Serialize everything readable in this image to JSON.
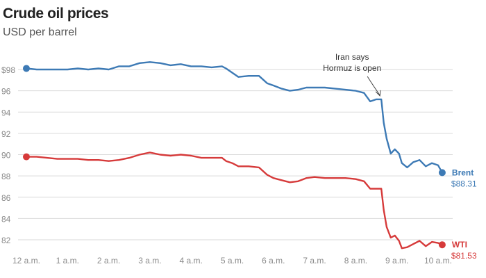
{
  "chart_data": {
    "type": "line",
    "title": "Crude oil prices",
    "subtitle": "USD per barrel",
    "ylim": [
      81,
      99
    ],
    "yticks": [
      {
        "value": 98,
        "label": "$98"
      },
      {
        "value": 96,
        "label": "96"
      },
      {
        "value": 94,
        "label": "94"
      },
      {
        "value": 92,
        "label": "92"
      },
      {
        "value": 90,
        "label": "90"
      },
      {
        "value": 88,
        "label": "88"
      },
      {
        "value": 86,
        "label": "86"
      },
      {
        "value": 84,
        "label": "84"
      },
      {
        "value": 82,
        "label": "82"
      }
    ],
    "xlim": [
      0,
      10.25
    ],
    "xticks": [
      {
        "value": 0,
        "label": "12 a.m."
      },
      {
        "value": 1,
        "label": "1 a.m."
      },
      {
        "value": 2,
        "label": "2 a.m."
      },
      {
        "value": 3,
        "label": "3 a.m."
      },
      {
        "value": 4,
        "label": "4 a.m."
      },
      {
        "value": 5,
        "label": "5 a.m."
      },
      {
        "value": 6,
        "label": "6 a.m."
      },
      {
        "value": 7,
        "label": "7 a.m."
      },
      {
        "value": 8,
        "label": "8 a.m."
      },
      {
        "value": 9,
        "label": "9 a.m."
      },
      {
        "value": 10,
        "label": "10 a.m."
      }
    ],
    "series": [
      {
        "name": "Brent",
        "last_label": "$88.31",
        "color": "#3d7ab5",
        "points": [
          [
            0,
            98.1
          ],
          [
            0.25,
            98.0
          ],
          [
            0.5,
            98.0
          ],
          [
            0.75,
            98.0
          ],
          [
            1.0,
            98.0
          ],
          [
            1.25,
            98.1
          ],
          [
            1.5,
            98.0
          ],
          [
            1.75,
            98.1
          ],
          [
            2.0,
            98.0
          ],
          [
            2.25,
            98.3
          ],
          [
            2.5,
            98.3
          ],
          [
            2.75,
            98.6
          ],
          [
            3.0,
            98.7
          ],
          [
            3.25,
            98.6
          ],
          [
            3.5,
            98.4
          ],
          [
            3.75,
            98.5
          ],
          [
            4.0,
            98.3
          ],
          [
            4.25,
            98.3
          ],
          [
            4.5,
            98.2
          ],
          [
            4.75,
            98.3
          ],
          [
            4.85,
            98.1
          ],
          [
            5.0,
            97.7
          ],
          [
            5.15,
            97.3
          ],
          [
            5.4,
            97.4
          ],
          [
            5.65,
            97.4
          ],
          [
            5.85,
            96.7
          ],
          [
            6.0,
            96.5
          ],
          [
            6.2,
            96.2
          ],
          [
            6.4,
            96.0
          ],
          [
            6.6,
            96.1
          ],
          [
            6.8,
            96.3
          ],
          [
            7.0,
            96.3
          ],
          [
            7.25,
            96.3
          ],
          [
            7.5,
            96.2
          ],
          [
            7.75,
            96.1
          ],
          [
            8.0,
            96.0
          ],
          [
            8.2,
            95.8
          ],
          [
            8.35,
            95.0
          ],
          [
            8.5,
            95.2
          ],
          [
            8.62,
            95.2
          ],
          [
            8.68,
            93.0
          ],
          [
            8.75,
            91.5
          ],
          [
            8.85,
            90.1
          ],
          [
            8.95,
            90.5
          ],
          [
            9.05,
            90.1
          ],
          [
            9.12,
            89.2
          ],
          [
            9.25,
            88.8
          ],
          [
            9.4,
            89.3
          ],
          [
            9.55,
            89.5
          ],
          [
            9.7,
            88.9
          ],
          [
            9.85,
            89.2
          ],
          [
            10.0,
            89.0
          ],
          [
            10.1,
            88.31
          ]
        ]
      },
      {
        "name": "WTI",
        "last_label": "$81.53",
        "color": "#d63a3a",
        "points": [
          [
            0,
            89.8
          ],
          [
            0.25,
            89.8
          ],
          [
            0.5,
            89.7
          ],
          [
            0.75,
            89.6
          ],
          [
            1.0,
            89.6
          ],
          [
            1.25,
            89.6
          ],
          [
            1.5,
            89.5
          ],
          [
            1.75,
            89.5
          ],
          [
            2.0,
            89.4
          ],
          [
            2.25,
            89.5
          ],
          [
            2.5,
            89.7
          ],
          [
            2.75,
            90.0
          ],
          [
            3.0,
            90.2
          ],
          [
            3.25,
            90.0
          ],
          [
            3.5,
            89.9
          ],
          [
            3.75,
            90.0
          ],
          [
            4.0,
            89.9
          ],
          [
            4.25,
            89.7
          ],
          [
            4.5,
            89.7
          ],
          [
            4.75,
            89.7
          ],
          [
            4.85,
            89.4
          ],
          [
            5.0,
            89.2
          ],
          [
            5.15,
            88.9
          ],
          [
            5.4,
            88.9
          ],
          [
            5.65,
            88.8
          ],
          [
            5.85,
            88.1
          ],
          [
            6.0,
            87.8
          ],
          [
            6.2,
            87.6
          ],
          [
            6.4,
            87.4
          ],
          [
            6.6,
            87.5
          ],
          [
            6.8,
            87.8
          ],
          [
            7.0,
            87.9
          ],
          [
            7.25,
            87.8
          ],
          [
            7.5,
            87.8
          ],
          [
            7.75,
            87.8
          ],
          [
            8.0,
            87.7
          ],
          [
            8.2,
            87.5
          ],
          [
            8.35,
            86.8
          ],
          [
            8.5,
            86.8
          ],
          [
            8.62,
            86.8
          ],
          [
            8.68,
            84.8
          ],
          [
            8.75,
            83.2
          ],
          [
            8.85,
            82.2
          ],
          [
            8.95,
            82.4
          ],
          [
            9.05,
            81.9
          ],
          [
            9.12,
            81.2
          ],
          [
            9.25,
            81.3
          ],
          [
            9.4,
            81.6
          ],
          [
            9.55,
            81.9
          ],
          [
            9.7,
            81.4
          ],
          [
            9.85,
            81.8
          ],
          [
            10.0,
            81.7
          ],
          [
            10.1,
            81.53
          ]
        ]
      }
    ],
    "annotation": {
      "lines": [
        "Iran says",
        "Hormuz is open"
      ],
      "x": 8.62,
      "y": 95.2
    }
  }
}
